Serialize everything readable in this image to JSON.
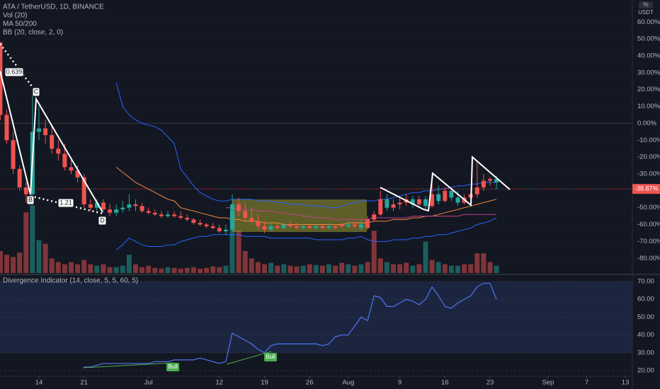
{
  "chart_data": [
    {
      "type": "candlestick",
      "title": "ATA / TetherUSD, 1D, BINANCE",
      "legend": [
        "Vol (20)",
        "MA 50/200",
        "BB (20, close, 2, 0)"
      ],
      "unit": "USDT",
      "scale_button": "%",
      "x": [
        "Jun 8",
        "Jun 9",
        "Jun 10",
        "Jun 11",
        "Jun 12",
        "Jun 13",
        "Jun 14",
        "Jun 15",
        "Jun 16",
        "Jun 17",
        "Jun 18",
        "Jun 19",
        "Jun 20",
        "Jun 21",
        "Jun 22",
        "Jun 23",
        "Jun 24",
        "Jun 25",
        "Jun 26",
        "Jun 27",
        "Jun 28",
        "Jun 29",
        "Jun 30",
        "Jul 1",
        "Jul 2",
        "Jul 3",
        "Jul 4",
        "Jul 5",
        "Jul 6",
        "Jul 7",
        "Jul 8",
        "Jul 9",
        "Jul 10",
        "Jul 11",
        "Jul 12",
        "Jul 13",
        "Jul 14",
        "Jul 15",
        "Jul 16",
        "Jul 17",
        "Jul 18",
        "Jul 19",
        "Jul 20",
        "Jul 21",
        "Jul 22",
        "Jul 23",
        "Jul 24",
        "Jul 25",
        "Jul 26",
        "Jul 27",
        "Jul 28",
        "Jul 29",
        "Jul 30",
        "Jul 31",
        "Aug 1",
        "Aug 2",
        "Aug 3",
        "Aug 4",
        "Aug 5",
        "Aug 6",
        "Aug 7",
        "Aug 8",
        "Aug 9",
        "Aug 10",
        "Aug 11",
        "Aug 12",
        "Aug 13",
        "Aug 14",
        "Aug 15",
        "Aug 16",
        "Aug 17",
        "Aug 18",
        "Aug 19",
        "Aug 20",
        "Aug 21",
        "Aug 22",
        "Aug 23",
        "Aug 24"
      ],
      "open": [
        48,
        5,
        -10,
        -27,
        -38,
        -42,
        -5,
        -3,
        -7,
        -15,
        -18,
        -26,
        -28,
        -32,
        -48,
        -50,
        -47,
        -51,
        -53,
        -51,
        -50,
        -48,
        -49,
        -52,
        -53,
        -54,
        -55,
        -54,
        -55,
        -56,
        -57,
        -59,
        -60,
        -61,
        -62,
        -64,
        -63,
        -48,
        -52,
        -56,
        -58,
        -61,
        -63,
        -61,
        -62,
        -60,
        -61,
        -62,
        -61,
        -62,
        -61,
        -62,
        -61,
        -60,
        -61,
        -60,
        -62,
        -57,
        -54,
        -45,
        -50,
        -48,
        -47,
        -45,
        -48,
        -45,
        -49,
        -42,
        -46,
        -40,
        -44,
        -47,
        -44,
        -42,
        -38,
        -34,
        -33,
        -35
      ],
      "high": [
        48,
        8,
        -5,
        -25,
        -35,
        18,
        10,
        2,
        -2,
        -10,
        -12,
        -20,
        -25,
        -30,
        -45,
        -45,
        -45,
        -48,
        -48,
        -46,
        -42,
        -45,
        -47,
        -50,
        -51,
        -52,
        -52,
        -52,
        -52,
        -54,
        -56,
        -57,
        -59,
        -59,
        -60,
        -60,
        -42,
        -44,
        -47,
        -50,
        -54,
        -58,
        -59,
        -59,
        -59,
        -58,
        -59,
        -60,
        -60,
        -60,
        -60,
        -59,
        -60,
        -59,
        -58,
        -58,
        -57,
        -55,
        -52,
        -40,
        -42,
        -45,
        -44,
        -42,
        -43,
        -43,
        -43,
        -30,
        -37,
        -38,
        -38,
        -40,
        -42,
        -40,
        -22,
        -30,
        -32,
        -31
      ],
      "low": [
        2,
        -12,
        -30,
        -40,
        -47,
        -44,
        -10,
        -12,
        -18,
        -22,
        -28,
        -30,
        -35,
        -50,
        -52,
        -52,
        -52,
        -55,
        -55,
        -53,
        -52,
        -52,
        -53,
        -54,
        -55,
        -56,
        -56,
        -56,
        -57,
        -58,
        -60,
        -61,
        -62,
        -63,
        -65,
        -66,
        -64,
        -55,
        -58,
        -60,
        -63,
        -65,
        -64,
        -63,
        -63,
        -62,
        -63,
        -63,
        -63,
        -63,
        -63,
        -63,
        -63,
        -62,
        -62,
        -62,
        -63,
        -63,
        -58,
        -55,
        -52,
        -52,
        -51,
        -49,
        -50,
        -50,
        -51,
        -50,
        -48,
        -47,
        -46,
        -49,
        -48,
        -46,
        -44,
        -40,
        -37,
        -39
      ],
      "close": [
        5,
        -10,
        -27,
        -38,
        -42,
        -5,
        -3,
        -7,
        -15,
        -18,
        -26,
        -28,
        -32,
        -48,
        -50,
        -47,
        -51,
        -53,
        -51,
        -50,
        -48,
        -49,
        -52,
        -53,
        -54,
        -55,
        -54,
        -55,
        -56,
        -57,
        -59,
        -60,
        -61,
        -62,
        -64,
        -63,
        -48,
        -52,
        -56,
        -58,
        -61,
        -63,
        -61,
        -62,
        -60,
        -61,
        -62,
        -61,
        -62,
        -61,
        -62,
        -61,
        -62,
        -61,
        -60,
        -61,
        -60,
        -62,
        -57,
        -54,
        -45,
        -50,
        -48,
        -47,
        -45,
        -48,
        -45,
        -49,
        -42,
        -46,
        -40,
        -44,
        -47,
        -44,
        -42,
        -38,
        -34,
        -33
      ],
      "volume": [
        30,
        25,
        22,
        28,
        83,
        93,
        45,
        40,
        20,
        15,
        12,
        15,
        12,
        18,
        12,
        10,
        12,
        8,
        8,
        10,
        25,
        12,
        8,
        10,
        7,
        6,
        8,
        7,
        6,
        7,
        8,
        6,
        7,
        9,
        8,
        10,
        83,
        58,
        30,
        20,
        15,
        12,
        14,
        10,
        12,
        10,
        9,
        10,
        12,
        11,
        10,
        12,
        10,
        14,
        12,
        10,
        12,
        15,
        58,
        20,
        15,
        12,
        12,
        14,
        10,
        12,
        43,
        18,
        15,
        12,
        10,
        10,
        12,
        12,
        27,
        27,
        15,
        10
      ],
      "up_color": "#26a69a",
      "down_color": "#ef5350",
      "lines": [
        {
          "color": "#2962ff",
          "values": [
            null,
            null,
            null,
            null,
            null,
            null,
            null,
            null,
            null,
            null,
            null,
            null,
            null,
            null,
            null,
            null,
            null,
            null,
            24,
            10,
            5,
            2,
            0,
            -1,
            -2,
            -4,
            -8,
            -12,
            -27,
            -32,
            -37,
            -41,
            -43,
            -45,
            -46,
            -46,
            -45,
            -45,
            -45,
            -45,
            -46,
            -46,
            -46,
            -47,
            -47,
            -48,
            -48,
            -48,
            -49,
            -49,
            -49,
            -50,
            -50,
            -49,
            -48,
            -47,
            -46,
            -46,
            -46,
            -45,
            -45,
            -44,
            -43,
            -42,
            -41,
            -41,
            -40,
            -40,
            -39,
            -39,
            -38,
            -37,
            -37,
            -36,
            -36,
            -35,
            -35,
            -35
          ]
        },
        {
          "color": "#2962ff",
          "values": [
            null,
            null,
            null,
            null,
            null,
            null,
            null,
            null,
            null,
            null,
            null,
            null,
            null,
            null,
            null,
            null,
            null,
            null,
            -75,
            -72,
            -68,
            -70,
            -72,
            -73,
            -73,
            -73,
            -72,
            -72,
            -70,
            -69,
            -68,
            -67,
            -67,
            -66,
            -66,
            -66,
            -66,
            -66,
            -67,
            -67,
            -67,
            -67,
            -68,
            -68,
            -68,
            -68,
            -68,
            -68,
            -68,
            -69,
            -69,
            -69,
            -69,
            -69,
            -68,
            -68,
            -67,
            -69,
            -70,
            -70,
            -70,
            -69,
            -69,
            -69,
            -68,
            -68,
            -67,
            -67,
            -66,
            -66,
            -65,
            -64,
            -63,
            -62,
            -60,
            -59,
            -58,
            -56
          ]
        },
        {
          "color": "#f7873a",
          "values": [
            null,
            null,
            null,
            null,
            null,
            null,
            null,
            null,
            null,
            null,
            null,
            null,
            null,
            null,
            null,
            null,
            null,
            null,
            -26,
            -29,
            -32,
            -35,
            -37,
            -39,
            -41,
            -43,
            -45,
            -46,
            -50,
            -51,
            -52,
            -53,
            -54,
            -55,
            -56,
            -56,
            -57,
            -57,
            -58,
            -58,
            -58,
            -59,
            -59,
            -59,
            -60,
            -60,
            -60,
            -60,
            -60,
            -60,
            -60,
            -60,
            -60,
            -60,
            -59,
            -59,
            -59,
            -59,
            -58,
            -58,
            -58,
            -57,
            -57,
            -57,
            -56,
            -56,
            -55,
            -55,
            -54,
            -53,
            -52,
            -51,
            -50,
            -49,
            -48,
            -47,
            -46,
            -45
          ]
        },
        {
          "color": "#c2408c",
          "values": [
            null,
            null,
            null,
            null,
            null,
            null,
            null,
            null,
            null,
            null,
            null,
            null,
            null,
            null,
            null,
            null,
            null,
            null,
            null,
            null,
            null,
            null,
            null,
            null,
            null,
            null,
            null,
            null,
            null,
            null,
            null,
            null,
            null,
            null,
            null,
            -50,
            -50,
            -51,
            -51,
            -51,
            -52,
            -52,
            -52,
            -53,
            -53,
            -54,
            -54,
            -55,
            -55,
            -56,
            -56,
            -56,
            -57,
            -57,
            -57,
            -57,
            -57,
            -57,
            -56,
            -56,
            -56,
            -56,
            -56,
            -56,
            -55,
            -55,
            -55,
            -55,
            -55,
            -55,
            -55,
            -55,
            -54,
            -54,
            -54,
            -54,
            -54,
            -54
          ]
        }
      ],
      "ylim": [
        -88.7,
        73.1
      ],
      "yticks": [
        {
          "value": 60,
          "label": "60.00%"
        },
        {
          "value": 50,
          "label": "50.00%"
        },
        {
          "value": 40,
          "label": "40.00%"
        },
        {
          "value": 30,
          "label": "30.00%"
        },
        {
          "value": 20,
          "label": "20.00%"
        },
        {
          "value": 10,
          "label": "10.00%"
        },
        {
          "value": 0,
          "label": "0.00%"
        },
        {
          "value": -10,
          "label": "-10.00%"
        },
        {
          "value": -20,
          "label": "-20.00%"
        },
        {
          "value": -30,
          "label": "-30.00%"
        },
        {
          "value": -40,
          "label": "-40.00%"
        },
        {
          "value": -50,
          "label": "-50.00%"
        },
        {
          "value": -60,
          "label": "-60.00%"
        },
        {
          "value": -70,
          "label": "-70.00%"
        },
        {
          "value": -80,
          "label": "-80.00%"
        }
      ],
      "last_price": {
        "value": -38.87,
        "label": "-38.87%"
      },
      "annotations": [
        "0.639",
        "C",
        "B",
        "1.21",
        "D"
      ]
    },
    {
      "type": "line",
      "title": "Divergence Indicator (14, close, 5, 5, 60, 5)",
      "color": "#4a6fe3",
      "values": [
        null,
        null,
        null,
        null,
        null,
        null,
        null,
        null,
        null,
        null,
        null,
        null,
        null,
        22,
        22,
        23,
        24,
        24,
        24,
        24,
        24,
        24,
        24,
        24,
        25,
        25,
        25,
        26,
        26,
        26,
        26,
        27,
        26,
        25,
        24,
        25,
        41,
        39,
        37,
        35,
        32,
        30,
        34,
        35,
        35,
        35,
        35,
        35,
        35,
        35,
        34,
        35,
        39,
        40,
        40,
        45,
        50,
        48,
        62,
        61,
        56,
        56,
        58,
        60,
        59,
        57,
        60,
        67,
        62,
        56,
        55,
        58,
        60,
        62,
        67,
        69,
        69,
        60
      ],
      "ylim": [
        16.8,
        73.2
      ],
      "yticks": [
        {
          "value": 70,
          "label": "70.00"
        },
        {
          "value": 60,
          "label": "60.00"
        },
        {
          "value": 50,
          "label": "50.00"
        },
        {
          "value": 40,
          "label": "40.00"
        },
        {
          "value": 30,
          "label": "30.00"
        },
        {
          "value": 20,
          "label": "20.00"
        }
      ],
      "annotations": [
        "Bull",
        "Bull"
      ],
      "xticks": [
        {
          "value": "Jun 14",
          "label": "14"
        },
        {
          "value": "Jun 21",
          "label": "21"
        },
        {
          "value": "Jul 1",
          "label": "Jul"
        },
        {
          "value": "Jul 12",
          "label": "12"
        },
        {
          "value": "Jul 19",
          "label": "19"
        },
        {
          "value": "Jul 26",
          "label": "26"
        },
        {
          "value": "Aug 1",
          "label": "Aug"
        },
        {
          "value": "Aug 9",
          "label": "9"
        },
        {
          "value": "Aug 16",
          "label": "16"
        },
        {
          "value": "Aug 23",
          "label": "23"
        },
        {
          "value": "Sep 1",
          "label": "Sep"
        },
        {
          "value": "Sep 7",
          "label": "7"
        },
        {
          "value": "Sep 13",
          "label": "13"
        }
      ]
    }
  ]
}
